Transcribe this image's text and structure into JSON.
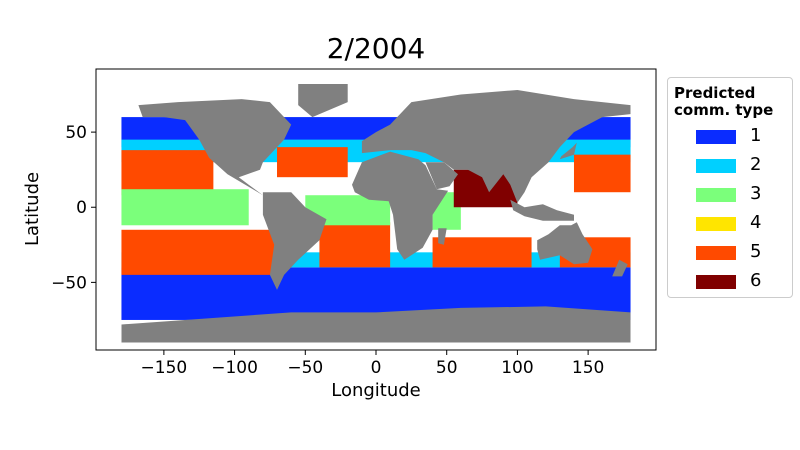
{
  "chart_data": {
    "type": "map-scatter",
    "title": "2/2004",
    "xlabel": "Longitude",
    "ylabel": "Latitude",
    "xlim": [
      -198,
      198
    ],
    "ylim": [
      -95,
      92
    ],
    "xticks": [
      -150,
      -100,
      -50,
      0,
      50,
      100,
      150
    ],
    "yticks": [
      -50,
      0,
      50
    ],
    "land_color": "#808080",
    "ocean_background": "#ffffff",
    "grid": false,
    "legend": {
      "placement": "right-outside",
      "title_lines": [
        "Predicted",
        "comm. type"
      ],
      "entries": [
        {
          "label": "1",
          "color": "#0a2cff"
        },
        {
          "label": "2",
          "color": "#00d0ff"
        },
        {
          "label": "3",
          "color": "#7bff7b"
        },
        {
          "label": "4",
          "color": "#ffe500"
        },
        {
          "label": "5",
          "color": "#ff4a00"
        },
        {
          "label": "6",
          "color": "#800000"
        }
      ]
    },
    "zones": [
      {
        "type": "1",
        "lon": [
          -180,
          180
        ],
        "lat": [
          40,
          60
        ]
      },
      {
        "type": "1",
        "lon": [
          -180,
          180
        ],
        "lat": [
          -75,
          -40
        ]
      },
      {
        "type": "2",
        "lon": [
          -180,
          180
        ],
        "lat": [
          30,
          45
        ]
      },
      {
        "type": "2",
        "lon": [
          -180,
          180
        ],
        "lat": [
          -40,
          -30
        ]
      },
      {
        "type": "5",
        "lon": [
          -180,
          -115
        ],
        "lat": [
          8,
          38
        ]
      },
      {
        "type": "5",
        "lon": [
          -180,
          -70
        ],
        "lat": [
          -45,
          -15
        ]
      },
      {
        "type": "5",
        "lon": [
          -40,
          10
        ],
        "lat": [
          -40,
          -10
        ]
      },
      {
        "type": "5",
        "lon": [
          40,
          110
        ],
        "lat": [
          -40,
          -20
        ]
      },
      {
        "type": "5",
        "lon": [
          130,
          180
        ],
        "lat": [
          -40,
          -20
        ]
      },
      {
        "type": "5",
        "lon": [
          140,
          180
        ],
        "lat": [
          10,
          35
        ]
      },
      {
        "type": "5",
        "lon": [
          -70,
          -20
        ],
        "lat": [
          20,
          40
        ]
      },
      {
        "type": "3",
        "lon": [
          -180,
          -90
        ],
        "lat": [
          -12,
          12
        ]
      },
      {
        "type": "3",
        "lon": [
          -50,
          10
        ],
        "lat": [
          -12,
          8
        ]
      },
      {
        "type": "3",
        "lon": [
          40,
          60
        ],
        "lat": [
          -15,
          10
        ]
      },
      {
        "type": "6",
        "lon": [
          55,
          100
        ],
        "lat": [
          0,
          25
        ]
      }
    ]
  }
}
